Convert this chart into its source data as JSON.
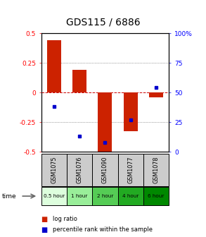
{
  "title": "GDS115 / 6886",
  "samples": [
    "GSM1075",
    "GSM1076",
    "GSM1090",
    "GSM1077",
    "GSM1078"
  ],
  "time_labels": [
    "0.5 hour",
    "1 hour",
    "2 hour",
    "4 hour",
    "6 hour"
  ],
  "log_ratios": [
    0.44,
    0.19,
    -0.52,
    -0.33,
    -0.04
  ],
  "percentile_ranks": [
    38,
    13,
    8,
    27,
    54
  ],
  "ylim_left": [
    -0.5,
    0.5
  ],
  "ylim_right": [
    0,
    100
  ],
  "bar_color": "#cc2200",
  "percentile_color": "#0000cc",
  "zero_line_color": "#cc0000",
  "background_color": "#ffffff",
  "time_colors": [
    "#ddfedd",
    "#99ee99",
    "#55cc55",
    "#22aa22",
    "#008800"
  ]
}
